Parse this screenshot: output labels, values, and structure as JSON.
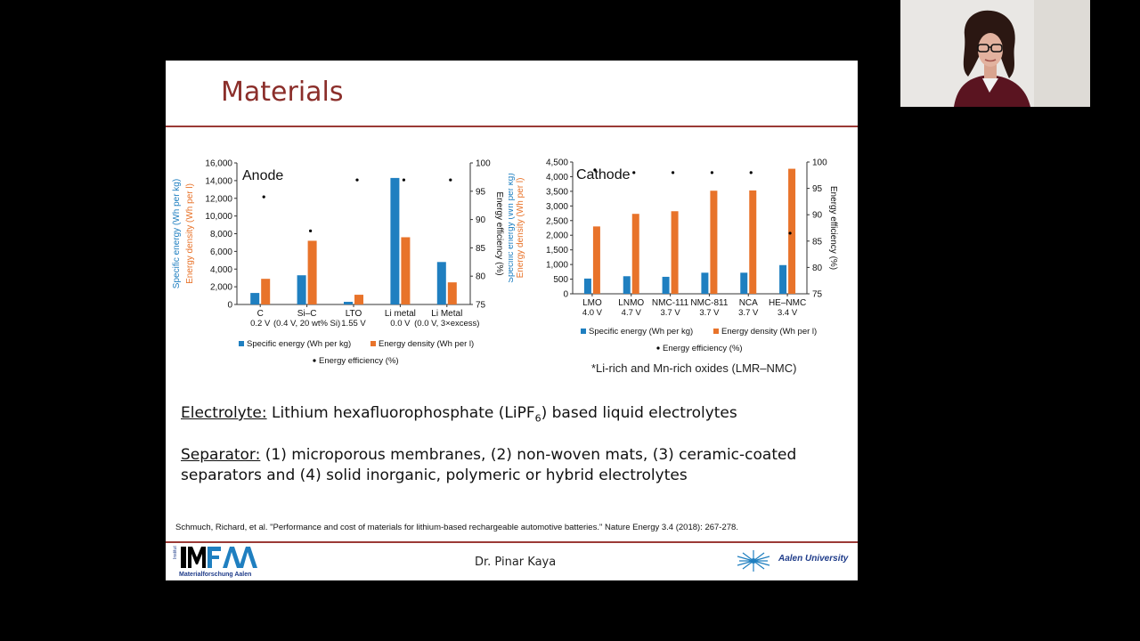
{
  "slide": {
    "title": "Materials",
    "presenter": "Dr. Pinar Kaya",
    "citation": "Schmuch, Richard, et al. \"Performance and cost of materials for lithium-based rechargeable automotive batteries.\" Nature Energy 3.4 (2018): 267-278.",
    "footnote": "*Li-rich and Mn-rich oxides (LMR–NMC)",
    "electrolyte_label": "Electrolyte:",
    "electrolyte_text_pre": " Lithium hexafluorophosphate (LiPF",
    "electrolyte_sub": "6",
    "electrolyte_text_post": ") based liquid electrolytes",
    "separator_label": "Separator:",
    "separator_text_1": " (1) microporous membranes, (2) non-woven mats, (3) ceramic-coated",
    "separator_text_2": "separators and (4) solid inorganic, polymeric or hybrid electrolytes",
    "logo_text": "IMFAA",
    "logo_sub": "Materialforschung Aalen",
    "logo_side": "Institut",
    "university": "Aalen University",
    "colors": {
      "accent": "#8b2e2a",
      "blue": "#1f7fc0",
      "orange": "#e8732a"
    }
  },
  "chart_data": [
    {
      "type": "bar",
      "title": "Anode",
      "categories": [
        "C",
        "Si–C",
        "LTO",
        "Li metal",
        "Li Metal"
      ],
      "category_sublabels": [
        "0.2 V",
        "(0.4 V, 20 wt% Si)",
        "1.55 V",
        "0.0 V",
        "(0.0 V, 3×excess)"
      ],
      "ylabel_left_1": "Specific energy (Wh per kg)",
      "ylabel_left_2": "Energy density (Wh per l)",
      "ylabel_right": "Energy efficiency (%)",
      "ylim": [
        0,
        16000
      ],
      "yticks": [
        "0",
        "2,000",
        "4,000",
        "6,000",
        "8,000",
        "10,000",
        "12,000",
        "14,000",
        "16,000"
      ],
      "y2lim": [
        75,
        100
      ],
      "y2ticks": [
        "75",
        "80",
        "85",
        "90",
        "95",
        "100"
      ],
      "series": [
        {
          "name": "Specific energy (Wh per kg)",
          "values": [
            1300,
            3300,
            300,
            14300,
            4800
          ]
        },
        {
          "name": "Energy density (Wh per l)",
          "values": [
            2900,
            7200,
            1100,
            7600,
            2500
          ]
        },
        {
          "name": "Energy efficiency (%)",
          "values": [
            94,
            88,
            97,
            97,
            97
          ]
        }
      ]
    },
    {
      "type": "bar",
      "title": "Cathode",
      "categories": [
        "LMO",
        "LNMO",
        "NMC-111",
        "NMC-811",
        "NCA",
        "HE–NMC"
      ],
      "category_sublabels": [
        "4.0 V",
        "4.7 V",
        "3.7 V",
        "3.7 V",
        "3.7 V",
        "3.4 V"
      ],
      "ylabel_left_1": "Specific energy (Wh per kg)",
      "ylabel_left_2": "Energy density (Wh per l)",
      "ylabel_right": "Energy efficiency (%)",
      "ylim": [
        0,
        4500
      ],
      "yticks": [
        "0",
        "500",
        "1,000",
        "1,500",
        "2,000",
        "2,500",
        "3,000",
        "3,500",
        "4,000",
        "4,500"
      ],
      "y2lim": [
        75,
        100
      ],
      "y2ticks": [
        "75",
        "80",
        "85",
        "90",
        "95",
        "100"
      ],
      "series": [
        {
          "name": "Specific energy (Wh per kg)",
          "values": [
            520,
            600,
            580,
            720,
            720,
            980
          ]
        },
        {
          "name": "Energy density (Wh per l)",
          "values": [
            2300,
            2730,
            2820,
            3520,
            3530,
            4270
          ]
        },
        {
          "name": "Energy efficiency (%)",
          "values": [
            98.5,
            98,
            98,
            98,
            98,
            86.5
          ]
        }
      ]
    }
  ]
}
